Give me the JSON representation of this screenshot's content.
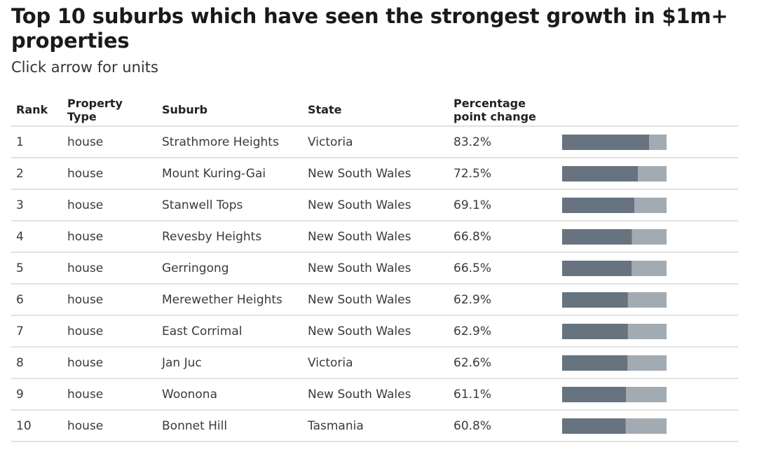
{
  "header": {
    "title": "Top 10 suburbs which have seen the strongest growth in $1m+ properties",
    "subtitle": "Click arrow for units"
  },
  "table": {
    "columns": {
      "rank": "Rank",
      "property_type": "Property Type",
      "suburb": "Suburb",
      "state": "State",
      "change": "Percentage point change"
    }
  },
  "colors": {
    "bar_fill": "#67737f",
    "bar_track": "#a3abb2",
    "row_divider": "#e2e2e2"
  },
  "chart_data": {
    "type": "table",
    "value_max": 100,
    "rows": [
      {
        "rank": "1",
        "property_type": "house",
        "suburb": "Strathmore Heights",
        "state": "Victoria",
        "change_label": "83.2%",
        "value": 83.2
      },
      {
        "rank": "2",
        "property_type": "house",
        "suburb": "Mount Kuring-Gai",
        "state": "New South Wales",
        "change_label": "72.5%",
        "value": 72.5
      },
      {
        "rank": "3",
        "property_type": "house",
        "suburb": "Stanwell Tops",
        "state": "New South Wales",
        "change_label": "69.1%",
        "value": 69.1
      },
      {
        "rank": "4",
        "property_type": "house",
        "suburb": "Revesby Heights",
        "state": "New South Wales",
        "change_label": "66.8%",
        "value": 66.8
      },
      {
        "rank": "5",
        "property_type": "house",
        "suburb": "Gerringong",
        "state": "New South Wales",
        "change_label": "66.5%",
        "value": 66.5
      },
      {
        "rank": "6",
        "property_type": "house",
        "suburb": "Merewether Heights",
        "state": "New South Wales",
        "change_label": "62.9%",
        "value": 62.9
      },
      {
        "rank": "7",
        "property_type": "house",
        "suburb": "East Corrimal",
        "state": "New South Wales",
        "change_label": "62.9%",
        "value": 62.9
      },
      {
        "rank": "8",
        "property_type": "house",
        "suburb": "Jan Juc",
        "state": "Victoria",
        "change_label": "62.6%",
        "value": 62.6
      },
      {
        "rank": "9",
        "property_type": "house",
        "suburb": "Woonona",
        "state": "New South Wales",
        "change_label": "61.1%",
        "value": 61.1
      },
      {
        "rank": "10",
        "property_type": "house",
        "suburb": "Bonnet Hill",
        "state": "Tasmania",
        "change_label": "60.8%",
        "value": 60.8
      }
    ]
  }
}
